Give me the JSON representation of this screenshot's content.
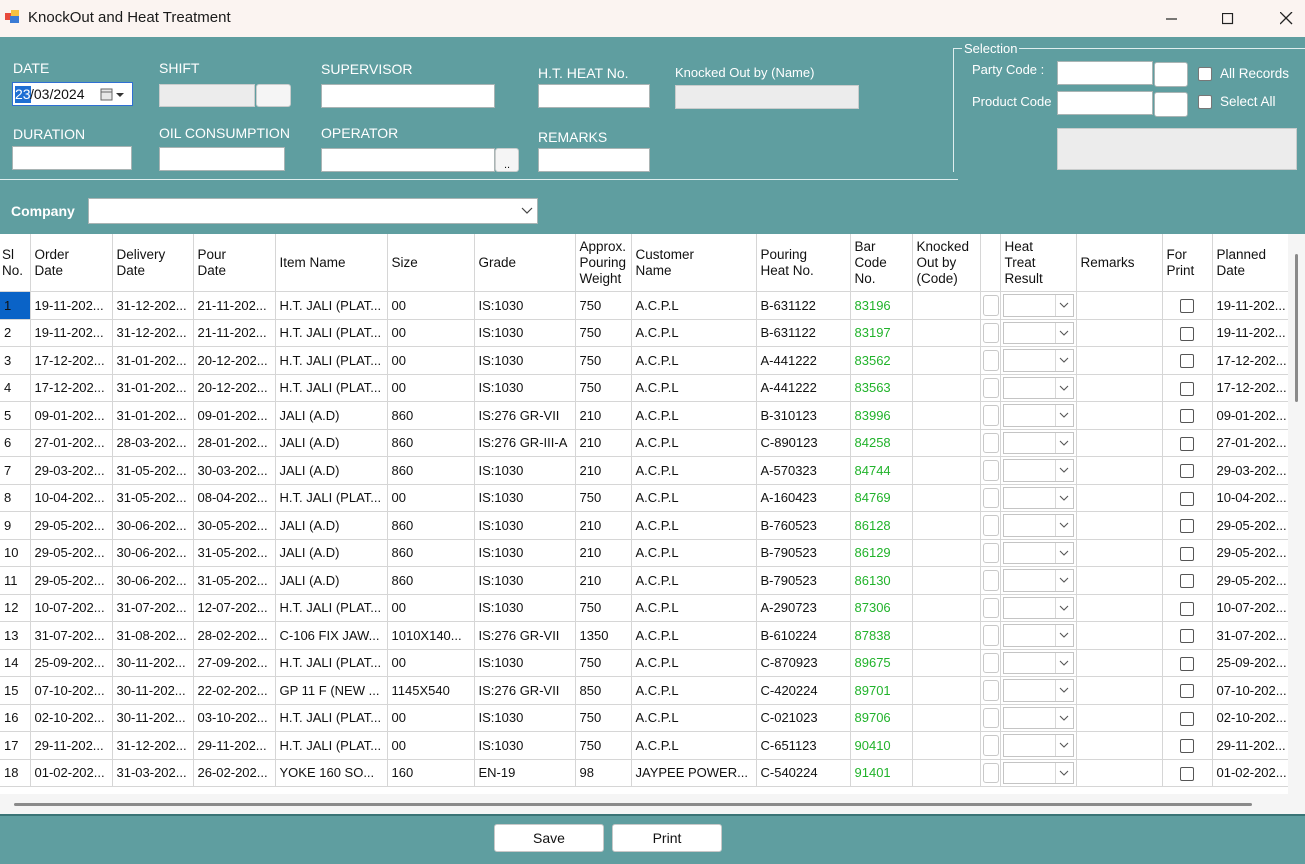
{
  "window": {
    "title": "KnockOut and Heat Treatment"
  },
  "form": {
    "date_label": "DATE",
    "date_value_selected": "23",
    "date_value_rest": "/03/2024",
    "shift_label": "SHIFT",
    "supervisor_label": "SUPERVISOR",
    "ht_heat_label": "H.T.  HEAT No.",
    "knocked_out_label": "Knocked Out by (Name)",
    "duration_label": "DURATION",
    "oil_label": "OIL CONSUMPTION",
    "operator_label": "OPERATOR",
    "operator_btn": "..",
    "remarks_label": "REMARKS"
  },
  "selection": {
    "legend": "Selection",
    "party_code_label": "Party Code :",
    "product_code_label": "Product Code",
    "all_records_label": "All Records",
    "select_all_label": "Select All"
  },
  "company": {
    "label": "Company"
  },
  "grid": {
    "columns": [
      "Sl\nNo.",
      "Order\nDate",
      "Delivery\nDate",
      "Pour\nDate",
      "Item Name",
      "Size",
      "Grade",
      "Approx.\nPouring\nWeight",
      "Customer\nName",
      "Pouring\nHeat No.",
      "Bar\nCode\nNo.",
      "Knocked\nOut by\n(Code)",
      "",
      "Heat\nTreat\nResult",
      "Remarks",
      "For\nPrint",
      "Planned\nDate"
    ],
    "rows": [
      {
        "sl": "1",
        "order": "19-11-202...",
        "delivery": "31-12-202...",
        "pour": "21-11-202...",
        "item": "H.T. JALI (PLAT...",
        "size": "00",
        "grade": "IS:1030",
        "weight": "750",
        "customer": "A.C.P.L",
        "heat": "B-631122",
        "bar": "83196",
        "planned": "19-11-202..."
      },
      {
        "sl": "2",
        "order": "19-11-202...",
        "delivery": "31-12-202...",
        "pour": "21-11-202...",
        "item": "H.T. JALI (PLAT...",
        "size": "00",
        "grade": "IS:1030",
        "weight": "750",
        "customer": "A.C.P.L",
        "heat": "B-631122",
        "bar": "83197",
        "planned": "19-11-202..."
      },
      {
        "sl": "3",
        "order": "17-12-202...",
        "delivery": "31-01-202...",
        "pour": "20-12-202...",
        "item": "H.T. JALI (PLAT...",
        "size": "00",
        "grade": "IS:1030",
        "weight": "750",
        "customer": "A.C.P.L",
        "heat": "A-441222",
        "bar": "83562",
        "planned": "17-12-202..."
      },
      {
        "sl": "4",
        "order": "17-12-202...",
        "delivery": "31-01-202...",
        "pour": "20-12-202...",
        "item": "H.T. JALI (PLAT...",
        "size": "00",
        "grade": "IS:1030",
        "weight": "750",
        "customer": "A.C.P.L",
        "heat": "A-441222",
        "bar": "83563",
        "planned": "17-12-202..."
      },
      {
        "sl": "5",
        "order": "09-01-202...",
        "delivery": "31-01-202...",
        "pour": "09-01-202...",
        "item": "JALI (A.D)",
        "size": "860",
        "grade": "IS:276 GR-VII",
        "weight": "210",
        "customer": "A.C.P.L",
        "heat": "B-310123",
        "bar": "83996",
        "planned": "09-01-202..."
      },
      {
        "sl": "6",
        "order": "27-01-202...",
        "delivery": "28-03-202...",
        "pour": "28-01-202...",
        "item": "JALI (A.D)",
        "size": "860",
        "grade": "IS:276 GR-III-A",
        "weight": "210",
        "customer": "A.C.P.L",
        "heat": "C-890123",
        "bar": "84258",
        "planned": "27-01-202..."
      },
      {
        "sl": "7",
        "order": "29-03-202...",
        "delivery": "31-05-202...",
        "pour": "30-03-202...",
        "item": "JALI (A.D)",
        "size": "860",
        "grade": "IS:1030",
        "weight": "210",
        "customer": "A.C.P.L",
        "heat": "A-570323",
        "bar": "84744",
        "planned": "29-03-202..."
      },
      {
        "sl": "8",
        "order": "10-04-202...",
        "delivery": "31-05-202...",
        "pour": "08-04-202...",
        "item": "H.T. JALI (PLAT...",
        "size": "00",
        "grade": "IS:1030",
        "weight": "750",
        "customer": "A.C.P.L",
        "heat": "A-160423",
        "bar": "84769",
        "planned": "10-04-202..."
      },
      {
        "sl": "9",
        "order": "29-05-202...",
        "delivery": "30-06-202...",
        "pour": "30-05-202...",
        "item": "JALI (A.D)",
        "size": "860",
        "grade": "IS:1030",
        "weight": "210",
        "customer": "A.C.P.L",
        "heat": "B-760523",
        "bar": "86128",
        "planned": "29-05-202..."
      },
      {
        "sl": "10",
        "order": "29-05-202...",
        "delivery": "30-06-202...",
        "pour": "31-05-202...",
        "item": "JALI (A.D)",
        "size": "860",
        "grade": "IS:1030",
        "weight": "210",
        "customer": "A.C.P.L",
        "heat": "B-790523",
        "bar": "86129",
        "planned": "29-05-202..."
      },
      {
        "sl": "11",
        "order": "29-05-202...",
        "delivery": "30-06-202...",
        "pour": "31-05-202...",
        "item": "JALI (A.D)",
        "size": "860",
        "grade": "IS:1030",
        "weight": "210",
        "customer": "A.C.P.L",
        "heat": "B-790523",
        "bar": "86130",
        "planned": "29-05-202..."
      },
      {
        "sl": "12",
        "order": "10-07-202...",
        "delivery": "31-07-202...",
        "pour": "12-07-202...",
        "item": "H.T. JALI (PLAT...",
        "size": "00",
        "grade": "IS:1030",
        "weight": "750",
        "customer": "A.C.P.L",
        "heat": "A-290723",
        "bar": "87306",
        "planned": "10-07-202..."
      },
      {
        "sl": "13",
        "order": "31-07-202...",
        "delivery": "31-08-202...",
        "pour": "28-02-202...",
        "item": "C-106 FIX JAW...",
        "size": "1010X140...",
        "grade": "IS:276 GR-VII",
        "weight": "1350",
        "customer": "A.C.P.L",
        "heat": "B-610224",
        "bar": "87838",
        "planned": "31-07-202..."
      },
      {
        "sl": "14",
        "order": "25-09-202...",
        "delivery": "30-11-202...",
        "pour": "27-09-202...",
        "item": "H.T. JALI (PLAT...",
        "size": "00",
        "grade": "IS:1030",
        "weight": "750",
        "customer": "A.C.P.L",
        "heat": "C-870923",
        "bar": "89675",
        "planned": "25-09-202..."
      },
      {
        "sl": "15",
        "order": "07-10-202...",
        "delivery": "30-11-202...",
        "pour": "22-02-202...",
        "item": "GP 11 F (NEW ...",
        "size": "1145X540",
        "grade": "IS:276 GR-VII",
        "weight": "850",
        "customer": "A.C.P.L",
        "heat": "C-420224",
        "bar": "89701",
        "planned": "07-10-202..."
      },
      {
        "sl": "16",
        "order": "02-10-202...",
        "delivery": "30-11-202...",
        "pour": "03-10-202...",
        "item": "H.T. JALI (PLAT...",
        "size": "00",
        "grade": "IS:1030",
        "weight": "750",
        "customer": "A.C.P.L",
        "heat": "C-021023",
        "bar": "89706",
        "planned": "02-10-202..."
      },
      {
        "sl": "17",
        "order": "29-11-202...",
        "delivery": "31-12-202...",
        "pour": "29-11-202...",
        "item": "H.T. JALI (PLAT...",
        "size": "00",
        "grade": "IS:1030",
        "weight": "750",
        "customer": "A.C.P.L",
        "heat": "C-651123",
        "bar": "90410",
        "planned": "29-11-202..."
      },
      {
        "sl": "18",
        "order": "01-02-202...",
        "delivery": "31-03-202...",
        "pour": "26-02-202...",
        "item": "YOKE 160 SO...",
        "size": "160",
        "grade": "EN-19",
        "weight": "98",
        "customer": "JAYPEE POWER...",
        "heat": "C-540224",
        "bar": "91401",
        "planned": "01-02-202..."
      }
    ]
  },
  "buttons": {
    "save": "Save",
    "print": "Print"
  },
  "colors": {
    "panel": "#5f9ea0",
    "barcode": "#21b32b",
    "selection": "#1f6fd3"
  }
}
